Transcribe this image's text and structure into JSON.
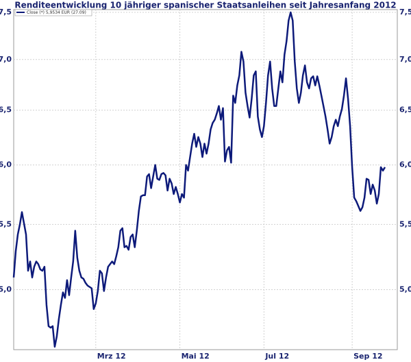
{
  "chart_data": {
    "type": "line",
    "title": "Renditeentwicklung 10 jähriger spanischer Staatsanleihen seit Jahresanfang 2012",
    "log_scale": true,
    "grid": true,
    "legend": "top-left",
    "series": [
      {
        "name": "Close (*) 5,9534 EUR (27.09)",
        "color": "#0d1a7a",
        "values": [
          5.09,
          5.29,
          5.42,
          5.5,
          5.6,
          5.51,
          5.42,
          5.14,
          5.21,
          5.09,
          5.17,
          5.21,
          5.19,
          5.15,
          5.14,
          5.17,
          4.89,
          4.74,
          4.73,
          4.74,
          4.6,
          4.67,
          4.79,
          4.89,
          4.98,
          4.94,
          5.07,
          4.96,
          5.09,
          5.21,
          5.45,
          5.24,
          5.14,
          5.09,
          5.08,
          5.05,
          5.03,
          5.02,
          5.01,
          4.86,
          4.9,
          4.99,
          5.14,
          5.12,
          4.99,
          5.09,
          5.17,
          5.19,
          5.21,
          5.19,
          5.25,
          5.32,
          5.45,
          5.47,
          5.32,
          5.33,
          5.3,
          5.4,
          5.42,
          5.32,
          5.45,
          5.61,
          5.73,
          5.74,
          5.74,
          5.9,
          5.92,
          5.8,
          5.9,
          6.0,
          5.88,
          5.87,
          5.92,
          5.93,
          5.91,
          5.78,
          5.88,
          5.84,
          5.75,
          5.81,
          5.75,
          5.68,
          5.75,
          5.72,
          6.0,
          5.95,
          6.07,
          6.19,
          6.28,
          6.16,
          6.25,
          6.19,
          6.07,
          6.19,
          6.1,
          6.19,
          6.32,
          6.38,
          6.41,
          6.47,
          6.54,
          6.41,
          6.52,
          6.03,
          6.13,
          6.16,
          6.02,
          6.64,
          6.57,
          6.74,
          6.84,
          7.08,
          6.98,
          6.67,
          6.54,
          6.43,
          6.61,
          6.84,
          6.88,
          6.44,
          6.32,
          6.25,
          6.35,
          6.57,
          6.84,
          6.98,
          6.71,
          6.54,
          6.54,
          6.71,
          6.88,
          6.77,
          7.05,
          7.19,
          7.41,
          7.5,
          7.41,
          6.98,
          6.71,
          6.57,
          6.67,
          6.84,
          6.94,
          6.77,
          6.71,
          6.81,
          6.83,
          6.74,
          6.83,
          6.74,
          6.64,
          6.54,
          6.44,
          6.32,
          6.19,
          6.25,
          6.35,
          6.41,
          6.35,
          6.44,
          6.51,
          6.64,
          6.81,
          6.61,
          6.35,
          5.98,
          5.72,
          5.69,
          5.65,
          5.61,
          5.64,
          5.72,
          5.88,
          5.87,
          5.75,
          5.83,
          5.78,
          5.67,
          5.75,
          5.98,
          5.95,
          5.98
        ]
      }
    ],
    "xlim": [
      0,
      187
    ],
    "xticks": [
      {
        "value": 40,
        "label": "Mrz 12"
      },
      {
        "value": 81,
        "label": "Mai 12"
      },
      {
        "value": 122,
        "label": "Jul 12"
      },
      {
        "value": 165,
        "label": "Sep 12"
      }
    ],
    "ylim": [
      4.58,
      7.53
    ],
    "yticks": [
      {
        "value": 5.0,
        "label": "5,0"
      },
      {
        "value": 5.5,
        "label": "5,5"
      },
      {
        "value": 6.0,
        "label": "6,0"
      },
      {
        "value": 6.5,
        "label": "6,5"
      },
      {
        "value": 7.0,
        "label": "7,0"
      },
      {
        "value": 7.5,
        "label": "7,5"
      }
    ]
  }
}
